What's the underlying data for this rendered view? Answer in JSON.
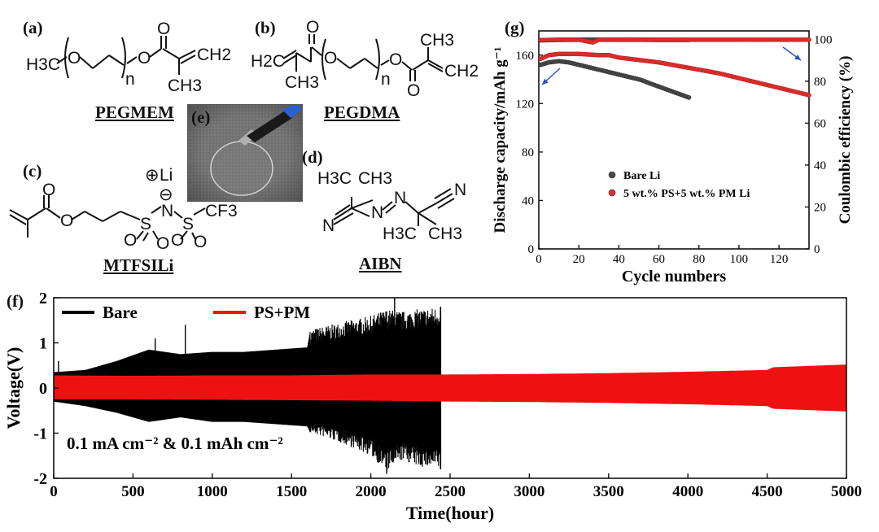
{
  "panels": {
    "a": {
      "label": "(a)",
      "name": "PEGMEM"
    },
    "b": {
      "label": "(b)",
      "name": "PEGDMA"
    },
    "c": {
      "label": "(c)",
      "name": "MTFSILi"
    },
    "d": {
      "label": "(d)",
      "name": "AIBN"
    },
    "e": {
      "label": "(e)"
    },
    "f": {
      "label": "(f)"
    },
    "g": {
      "label": "(g)"
    }
  },
  "chem": {
    "a": {
      "h3c": "H3C",
      "o1": "O",
      "n": "n",
      "o2": "O",
      "o3": "O",
      "ch2": "CH2",
      "ch3": "CH3"
    },
    "b": {
      "h2c": "H2C",
      "o1": "O",
      "o2": "O",
      "n": "n",
      "o3": "O",
      "o4": "O",
      "ch3": "CH3",
      "ch3b": "CH3",
      "ch2": "CH2"
    },
    "c": {
      "li": "Li",
      "minus": "⊖",
      "plus": "⊕",
      "o1": "O",
      "o2": "O",
      "n": "N",
      "s1": "S",
      "s2": "S",
      "o3": "O",
      "o4": "O",
      "o5": "O",
      "o6": "O",
      "cf3": "CF3"
    },
    "d": {
      "h3c1": "H3C",
      "ch3a": "CH3",
      "n1": "N",
      "n2": "N",
      "n3": "N",
      "n4": "N",
      "h3c2": "H3C",
      "ch3b": "CH3"
    }
  },
  "chart_data": [
    {
      "id": "g",
      "type": "scatter",
      "xlabel": "Cycle numbers",
      "ylabel": "Discharge capacity/mAh g⁻¹",
      "y2label": "Coulombic efficiency (%)",
      "xlim": [
        0,
        135
      ],
      "ylim": [
        0,
        180
      ],
      "y2lim": [
        0,
        104
      ],
      "xticks": [
        0,
        20,
        40,
        60,
        80,
        100,
        120
      ],
      "yticks": [
        0,
        40,
        80,
        120,
        160
      ],
      "y2ticks": [
        0,
        20,
        40,
        60,
        80,
        100
      ],
      "legend_position": "lower-left",
      "series": [
        {
          "name": "Bare Li",
          "color": "#4a4a4a",
          "axis": "left",
          "x": [
            1,
            5,
            10,
            15,
            20,
            25,
            30,
            35,
            40,
            45,
            50,
            52,
            55,
            60,
            65,
            70,
            75
          ],
          "values": [
            152,
            154,
            155,
            154,
            152,
            150,
            148,
            146,
            144,
            142,
            140,
            139,
            137,
            134,
            131,
            128,
            125
          ]
        },
        {
          "name": "5 wt.% PS+5 wt.% PM Li",
          "color": "#e03030",
          "axis": "left",
          "x": [
            1,
            5,
            10,
            20,
            30,
            35,
            40,
            50,
            60,
            70,
            80,
            90,
            100,
            110,
            120,
            130,
            135
          ],
          "values": [
            157,
            160,
            161,
            161,
            160,
            160,
            158,
            156,
            154,
            151,
            148,
            145,
            141,
            137,
            133,
            129,
            127
          ]
        },
        {
          "name": "",
          "color": "#4a4a4a",
          "axis": "right",
          "x": [
            1,
            10,
            20,
            30,
            40,
            50,
            60,
            70,
            75
          ],
          "values": [
            99.5,
            99.7,
            99.8,
            99.8,
            99.8,
            99.8,
            99.7,
            99.7,
            99.7
          ]
        },
        {
          "name": "",
          "color": "#e03030",
          "axis": "right",
          "x": [
            1,
            10,
            20,
            27,
            30,
            40,
            50,
            60,
            70,
            80,
            90,
            100,
            110,
            120,
            130,
            135
          ],
          "values": [
            99.6,
            99.8,
            99.8,
            98.5,
            99.8,
            99.8,
            99.8,
            99.8,
            99.8,
            99.8,
            99.8,
            99.8,
            99.8,
            99.8,
            99.8,
            99.8
          ]
        }
      ]
    },
    {
      "id": "f",
      "type": "line",
      "xlabel": "Time(hour)",
      "ylabel": "Voltage(V)",
      "xlim": [
        0,
        5000
      ],
      "ylim": [
        -2,
        2
      ],
      "xticks": [
        0,
        500,
        1000,
        1500,
        2000,
        2500,
        3000,
        3500,
        4000,
        4500,
        5000
      ],
      "yticks": [
        -2,
        -1,
        0,
        1,
        2
      ],
      "annotation": "0.1 mA cm⁻² & 0.1 mAh cm⁻²",
      "legend_position": "top-left",
      "series": [
        {
          "name": "Bare",
          "color": "#000000",
          "x": [
            0,
            200,
            400,
            600,
            800,
            1000,
            1200,
            1400,
            1600,
            1620,
            1800,
            2000,
            2100,
            2200,
            2300,
            2440
          ],
          "upper": [
            0.35,
            0.4,
            0.6,
            0.85,
            0.75,
            0.8,
            0.8,
            0.85,
            0.9,
            1.3,
            1.45,
            1.6,
            1.75,
            1.7,
            1.75,
            1.8
          ],
          "lower": [
            -0.3,
            -0.4,
            -0.55,
            -0.75,
            -0.65,
            -0.75,
            -0.75,
            -0.8,
            -0.85,
            -1.0,
            -1.2,
            -1.5,
            -1.85,
            -1.6,
            -1.75,
            -1.8
          ],
          "spikes": [
            {
              "x": 30,
              "v": 0.6
            },
            {
              "x": 640,
              "v": 1.1
            },
            {
              "x": 830,
              "v": 1.4
            },
            {
              "x": 2150,
              "v": 2.0
            },
            {
              "x": 2100,
              "v": -1.9
            }
          ]
        },
        {
          "name": "PS+PM",
          "color": "#ee1111",
          "x": [
            0,
            500,
            1000,
            1500,
            2000,
            2500,
            3000,
            3500,
            4000,
            4500,
            4540,
            5000
          ],
          "upper": [
            0.28,
            0.27,
            0.28,
            0.28,
            0.3,
            0.3,
            0.31,
            0.33,
            0.36,
            0.4,
            0.46,
            0.52
          ],
          "lower": [
            -0.25,
            -0.25,
            -0.26,
            -0.27,
            -0.28,
            -0.3,
            -0.31,
            -0.33,
            -0.36,
            -0.4,
            -0.46,
            -0.52
          ]
        }
      ]
    }
  ]
}
